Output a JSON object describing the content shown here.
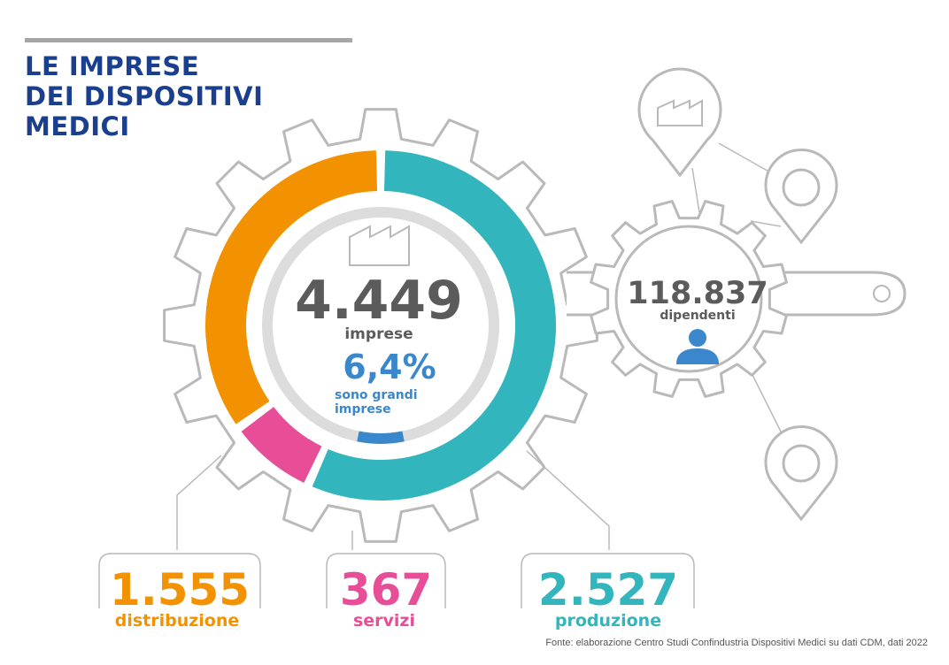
{
  "title": {
    "line1": "LE IMPRESE",
    "line2": "DEI DISPOSITIVI",
    "line3": "MEDICI"
  },
  "chart_data": {
    "type": "pie",
    "title": "",
    "categories": [
      "distribuzione",
      "servizi",
      "produzione"
    ],
    "values": [
      1555,
      367,
      2527
    ],
    "colors": [
      "#f39200",
      "#e84e98",
      "#33b5bd"
    ],
    "total": {
      "value": "4.449",
      "label": "imprese"
    },
    "share_large": {
      "value": "6,4%",
      "label_line1": "sono grandi",
      "label_line2": "imprese",
      "fraction": 0.064,
      "color": "#3b87cc"
    }
  },
  "callouts": [
    {
      "value": "1.555",
      "label": "distribuzione",
      "color": "#f39200"
    },
    {
      "value": "367",
      "label": "servizi",
      "color": "#e84e98"
    },
    {
      "value": "2.527",
      "label": "produzione",
      "color": "#33b5bd"
    }
  ],
  "employees": {
    "value": "118.837",
    "label": "dipendenti"
  },
  "icons": [
    "factory-icon",
    "person-icon",
    "map-pin-icon",
    "gear-icon"
  ],
  "colors": {
    "title": "#1b3f8f",
    "number_gray": "#5b5b5b",
    "outline": "#b9b9b9",
    "track": "#dcdcdc"
  },
  "source": "Fonte: elaborazione Centro Studi Confindustria Dispositivi Medici su dati CDM, dati 2022"
}
